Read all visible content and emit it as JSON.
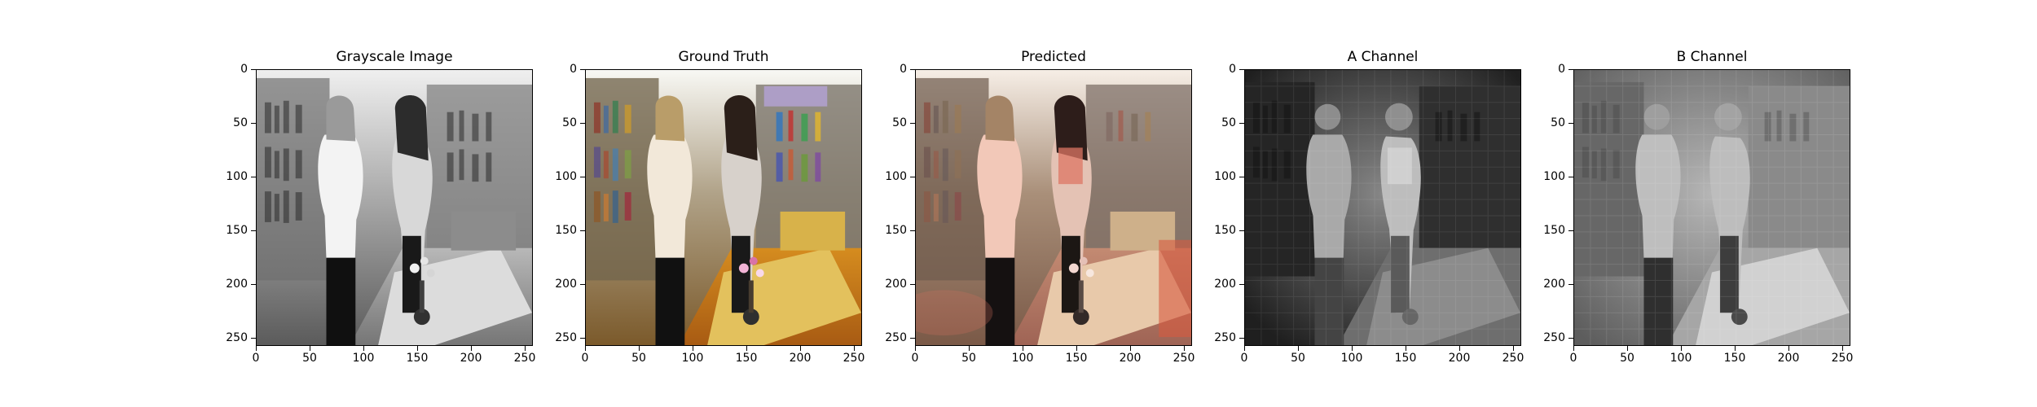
{
  "figure": {
    "panels": [
      {
        "title": "Grayscale Image",
        "image": {
          "label": "library scene with two women near tables and bookshelves",
          "mode": "grayscale"
        },
        "x_ticks": [
          "0",
          "50",
          "100",
          "150",
          "200",
          "250"
        ],
        "y_ticks": [
          "0",
          "50",
          "100",
          "150",
          "200",
          "250"
        ]
      },
      {
        "title": "Ground Truth",
        "image": {
          "label": "same library scene in full color",
          "mode": "color"
        },
        "x_ticks": [
          "0",
          "50",
          "100",
          "150",
          "200",
          "250"
        ],
        "y_ticks": [
          "0",
          "50",
          "100",
          "150",
          "200",
          "250"
        ]
      },
      {
        "title": "Predicted",
        "image": {
          "label": "predicted colorized library scene",
          "mode": "predicted"
        },
        "x_ticks": [
          "0",
          "50",
          "100",
          "150",
          "200",
          "250"
        ],
        "y_ticks": [
          "0",
          "50",
          "100",
          "150",
          "200",
          "250"
        ]
      },
      {
        "title": "A Channel",
        "image": {
          "label": "A channel visualization",
          "mode": "a-channel"
        },
        "x_ticks": [
          "0",
          "50",
          "100",
          "150",
          "200",
          "250"
        ],
        "y_ticks": [
          "0",
          "50",
          "100",
          "150",
          "200",
          "250"
        ]
      },
      {
        "title": "B Channel",
        "image": {
          "label": "B channel visualization",
          "mode": "b-channel"
        },
        "x_ticks": [
          "0",
          "50",
          "100",
          "150",
          "200",
          "250"
        ],
        "y_ticks": [
          "0",
          "50",
          "100",
          "150",
          "200",
          "250"
        ]
      }
    ]
  }
}
